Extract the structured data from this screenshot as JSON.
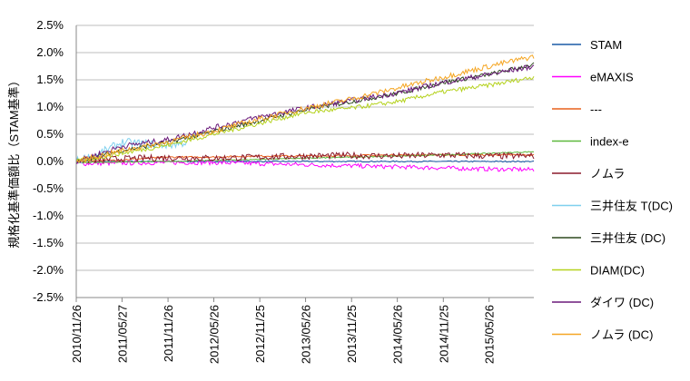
{
  "chart_data": {
    "type": "line",
    "ylabel": "規格化基準価額比（STAM基準）",
    "ylim": [
      -2.5,
      2.5
    ],
    "y_ticks": [
      "2.5%",
      "2.0%",
      "1.5%",
      "1.0%",
      "0.5%",
      "0.0%",
      "-0.5%",
      "-1.0%",
      "-1.5%",
      "-2.0%",
      "-2.5%"
    ],
    "y_tick_values": [
      2.5,
      2.0,
      1.5,
      1.0,
      0.5,
      0.0,
      -0.5,
      -1.0,
      -1.5,
      -2.0,
      -2.5
    ],
    "x_ticks": [
      "2010/11/26",
      "2011/05/27",
      "2011/11/26",
      "2012/05/26",
      "2012/11/25",
      "2013/05/26",
      "2013/11/25",
      "2014/05/26",
      "2014/11/25",
      "2015/05/26"
    ],
    "x_range": [
      "2010/11/26",
      "2015/11/20"
    ],
    "grid": "horizontal",
    "legend_position": "right",
    "series": [
      {
        "name": "STAM",
        "color": "#1a5aa6",
        "noise": 0.012,
        "points": [
          [
            "2010/11/26",
            0.0
          ],
          [
            "2011/05/27",
            0.0
          ],
          [
            "2012/05/26",
            0.0
          ],
          [
            "2013/05/26",
            0.0
          ],
          [
            "2014/05/26",
            0.0
          ],
          [
            "2015/11/20",
            0.0
          ]
        ]
      },
      {
        "name": "eMAXIS",
        "color": "#ff00ff",
        "noise": 0.04,
        "points": [
          [
            "2010/11/26",
            -0.04
          ],
          [
            "2011/05/27",
            -0.03
          ],
          [
            "2011/11/26",
            -0.02
          ],
          [
            "2012/05/26",
            -0.02
          ],
          [
            "2012/11/25",
            -0.04
          ],
          [
            "2013/05/26",
            -0.06
          ],
          [
            "2013/11/25",
            -0.08
          ],
          [
            "2014/05/26",
            -0.1
          ],
          [
            "2014/11/25",
            -0.12
          ],
          [
            "2015/05/26",
            -0.14
          ],
          [
            "2015/11/20",
            -0.15
          ]
        ]
      },
      {
        "name": "---",
        "color": "#e8601c",
        "noise": 0.015,
        "points": [
          [
            "2010/11/26",
            0.0
          ],
          [
            "2011/05/27",
            0.03
          ],
          [
            "2011/11/26",
            0.08
          ],
          [
            "2012/05/26",
            0.08
          ],
          [
            "2012/11/25",
            0.1
          ],
          [
            "2013/05/26",
            0.1
          ],
          [
            "2014/05/26",
            0.12
          ],
          [
            "2015/11/20",
            0.12
          ]
        ]
      },
      {
        "name": "index-e",
        "color": "#5cb83c",
        "noise": 0.01,
        "points": [
          [
            "2010/11/26",
            -0.02
          ],
          [
            "2011/05/27",
            -0.01
          ],
          [
            "2011/11/26",
            0.0
          ],
          [
            "2012/05/26",
            0.02
          ],
          [
            "2012/11/25",
            0.04
          ],
          [
            "2013/05/26",
            0.06
          ],
          [
            "2013/11/25",
            0.08
          ],
          [
            "2014/05/26",
            0.1
          ],
          [
            "2014/11/25",
            0.12
          ],
          [
            "2015/05/26",
            0.15
          ],
          [
            "2015/11/20",
            0.18
          ]
        ]
      },
      {
        "name": "ノムラ",
        "color": "#8b1a2c",
        "noise": 0.06,
        "points": [
          [
            "2010/11/26",
            0.02
          ],
          [
            "2011/05/27",
            0.05
          ],
          [
            "2011/11/26",
            0.07
          ],
          [
            "2012/05/26",
            0.06
          ],
          [
            "2012/11/25",
            0.08
          ],
          [
            "2013/05/26",
            0.1
          ],
          [
            "2013/11/25",
            0.11
          ],
          [
            "2014/05/26",
            0.1
          ],
          [
            "2014/11/25",
            0.12
          ],
          [
            "2015/05/26",
            0.1
          ],
          [
            "2015/11/20",
            0.1
          ]
        ]
      },
      {
        "name": "三井住友 T(DC)",
        "color": "#7fd0ee",
        "noise": 0.08,
        "points": [
          [
            "2010/11/26",
            0.0
          ],
          [
            "2011/03/01",
            0.15
          ],
          [
            "2011/05/27",
            0.35
          ],
          [
            "2011/11/26",
            0.3
          ],
          [
            "2012/02/01",
            0.35
          ],
          [
            "2012/04/01",
            0.5
          ]
        ]
      },
      {
        "name": "三井住友 (DC)",
        "color": "#2f4a1f",
        "noise": 0.04,
        "points": [
          [
            "2010/11/26",
            0.0
          ],
          [
            "2011/05/27",
            0.2
          ],
          [
            "2011/11/26",
            0.35
          ],
          [
            "2012/05/26",
            0.55
          ],
          [
            "2012/11/25",
            0.75
          ],
          [
            "2013/05/26",
            0.95
          ],
          [
            "2013/11/25",
            1.1
          ],
          [
            "2014/05/26",
            1.25
          ],
          [
            "2014/11/25",
            1.45
          ],
          [
            "2015/05/26",
            1.6
          ],
          [
            "2015/11/20",
            1.78
          ]
        ]
      },
      {
        "name": "DIAM(DC)",
        "color": "#b5d21e",
        "noise": 0.04,
        "points": [
          [
            "2010/11/26",
            0.0
          ],
          [
            "2011/05/27",
            0.15
          ],
          [
            "2011/11/26",
            0.3
          ],
          [
            "2012/05/26",
            0.5
          ],
          [
            "2012/11/25",
            0.7
          ],
          [
            "2013/05/26",
            0.9
          ],
          [
            "2013/11/25",
            0.98
          ],
          [
            "2014/05/26",
            1.1
          ],
          [
            "2014/11/25",
            1.28
          ],
          [
            "2015/05/26",
            1.4
          ],
          [
            "2015/11/20",
            1.55
          ]
        ]
      },
      {
        "name": "ダイワ (DC)",
        "color": "#6b1a7a",
        "noise": 0.05,
        "points": [
          [
            "2010/11/26",
            0.0
          ],
          [
            "2011/05/27",
            0.28
          ],
          [
            "2011/11/26",
            0.4
          ],
          [
            "2012/05/26",
            0.62
          ],
          [
            "2012/11/25",
            0.82
          ],
          [
            "2013/05/26",
            0.98
          ],
          [
            "2013/11/25",
            1.12
          ],
          [
            "2014/05/26",
            1.26
          ],
          [
            "2014/11/25",
            1.45
          ],
          [
            "2015/05/26",
            1.6
          ],
          [
            "2015/11/20",
            1.75
          ]
        ]
      },
      {
        "name": "ノムラ (DC)",
        "color": "#f5a623",
        "noise": 0.05,
        "points": [
          [
            "2010/11/26",
            0.0
          ],
          [
            "2011/05/27",
            0.2
          ],
          [
            "2011/11/26",
            0.36
          ],
          [
            "2012/05/26",
            0.56
          ],
          [
            "2012/11/25",
            0.78
          ],
          [
            "2013/05/26",
            0.98
          ],
          [
            "2013/11/25",
            1.15
          ],
          [
            "2014/05/26",
            1.35
          ],
          [
            "2014/11/25",
            1.55
          ],
          [
            "2015/05/26",
            1.75
          ],
          [
            "2015/11/20",
            1.93
          ]
        ]
      }
    ]
  }
}
